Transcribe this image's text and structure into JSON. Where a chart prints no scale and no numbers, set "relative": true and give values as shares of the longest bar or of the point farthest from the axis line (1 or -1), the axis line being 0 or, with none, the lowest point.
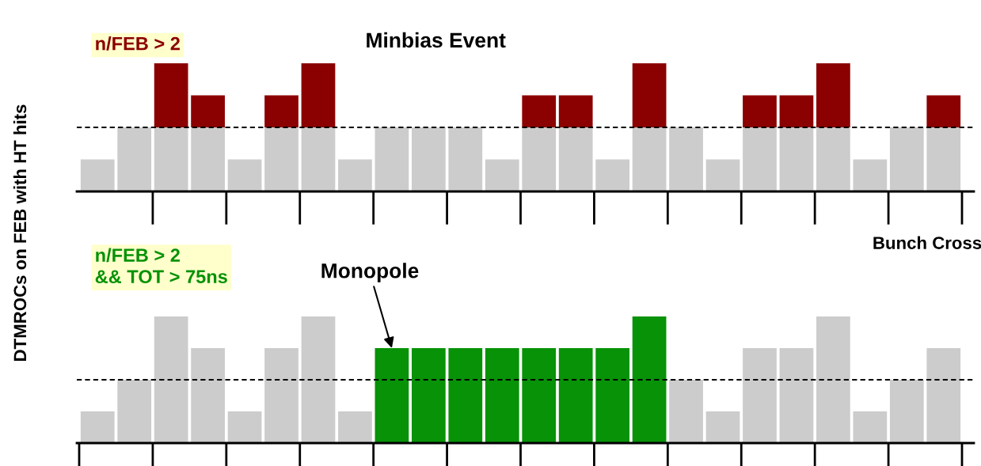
{
  "chart_data": [
    {
      "type": "bar",
      "stacked": true,
      "relative": true,
      "title": "Minbias Event",
      "xlabel": "Bunch Cross",
      "ylabel": "DTMROCs on FEB with HT hits",
      "annotations": [
        "n/FEB > 2"
      ],
      "categories": [
        null,
        null,
        null,
        null,
        null,
        null,
        null,
        null,
        null,
        null,
        null,
        null,
        null,
        null,
        null,
        null,
        null,
        null,
        null,
        null,
        null,
        null,
        null,
        null
      ],
      "series": [
        {
          "color": "#cccccc",
          "values": [
            0.25,
            0.5,
            0.5,
            0.5,
            0.25,
            0.5,
            0.5,
            0.25,
            0.5,
            0.5,
            0.5,
            0.25,
            0.5,
            0.5,
            0.25,
            0.5,
            0.5,
            0.25,
            0.5,
            0.5,
            0.5,
            0.25,
            0.5,
            0.5
          ]
        },
        {
          "color": "#8b0000",
          "values": [
            null,
            null,
            0.5,
            0.25,
            null,
            0.25,
            0.5,
            null,
            null,
            null,
            null,
            null,
            0.25,
            0.25,
            null,
            0.5,
            null,
            null,
            0.25,
            0.25,
            0.5,
            null,
            null,
            0.25
          ]
        }
      ],
      "ref_lines": [
        {
          "axis": "y",
          "value": 0.5,
          "line_style": "dotted",
          "color": "#000000"
        }
      ]
    },
    {
      "type": "bar",
      "relative": true,
      "annotations": [
        "n/FEB > 2\n&& TOT > 75ns",
        "Monopole"
      ],
      "categories": [
        null,
        null,
        null,
        null,
        null,
        null,
        null,
        null,
        null,
        null,
        null,
        null,
        null,
        null,
        null,
        null,
        null,
        null,
        null,
        null,
        null,
        null,
        null,
        null
      ],
      "series": [
        {
          "color": "#cccccc",
          "values": [
            0.25,
            0.5,
            1,
            0.75,
            0.25,
            0.75,
            1,
            0.25,
            null,
            null,
            null,
            null,
            null,
            null,
            null,
            null,
            0.5,
            0.25,
            0.75,
            0.75,
            1,
            0.25,
            0.5,
            0.75
          ]
        },
        {
          "color": "#079207",
          "values": [
            null,
            null,
            null,
            null,
            null,
            null,
            null,
            null,
            0.75,
            0.75,
            0.75,
            0.75,
            0.75,
            0.75,
            0.75,
            1,
            null,
            null,
            null,
            null,
            null,
            null,
            null,
            null
          ]
        }
      ],
      "ref_lines": [
        {
          "axis": "y",
          "value": 0.5,
          "line_style": "dotted",
          "color": "#000000"
        }
      ]
    }
  ]
}
